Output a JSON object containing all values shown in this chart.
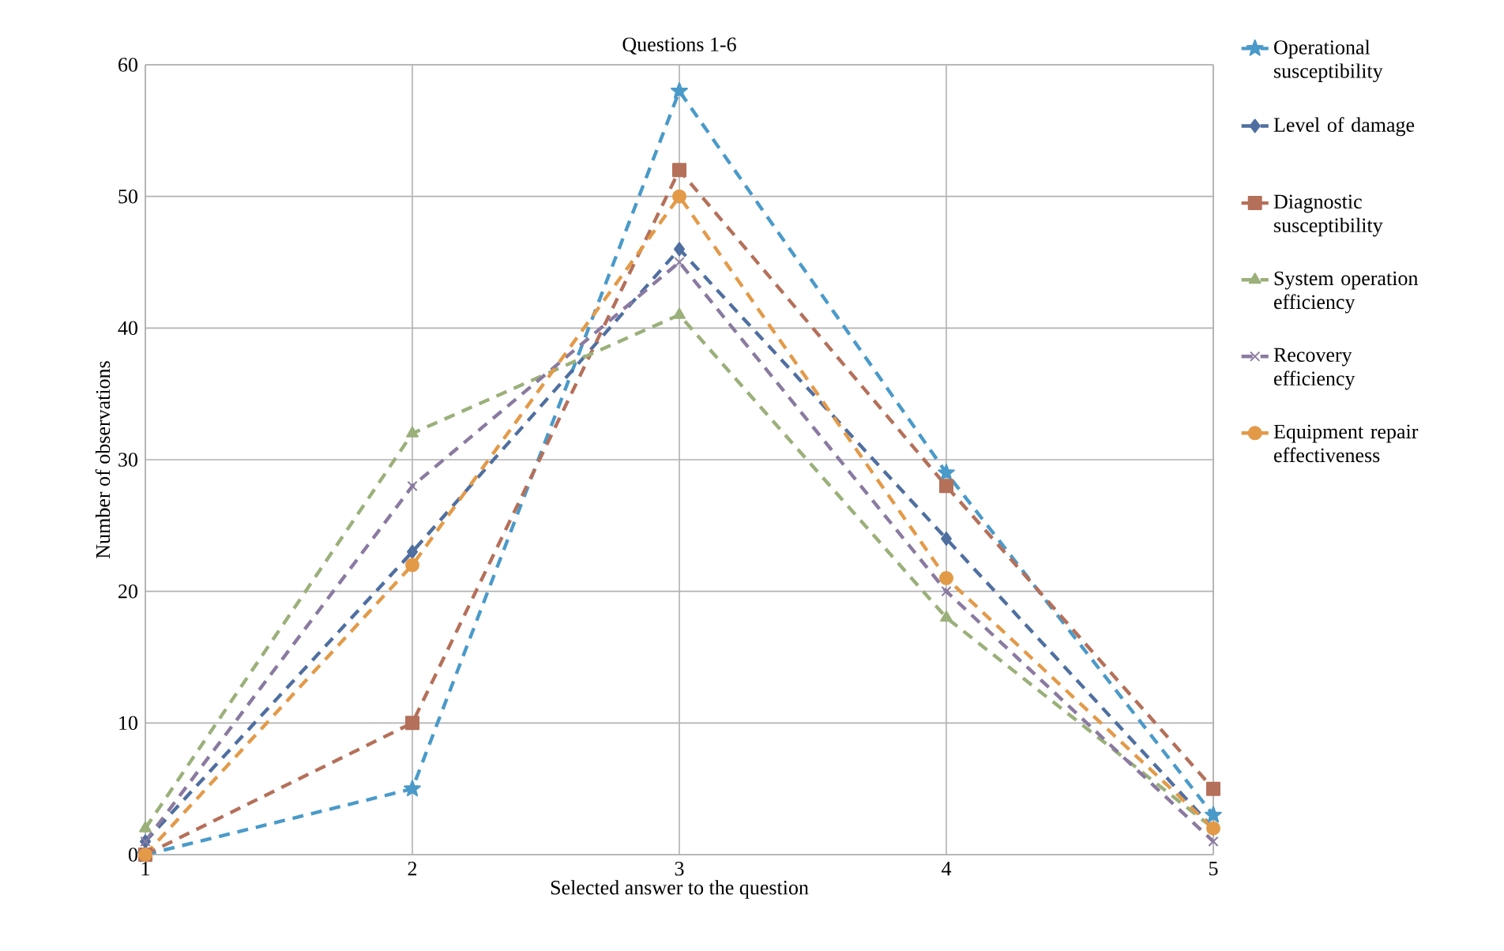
{
  "chart_data": {
    "type": "line",
    "title": "Questions 1-6",
    "xlabel": "Selected answer to the question",
    "ylabel": "Number of observations",
    "x": [
      1,
      2,
      3,
      4,
      5
    ],
    "xlim": [
      1,
      5
    ],
    "xticks": [
      1,
      2,
      3,
      4,
      5
    ],
    "ylim": [
      0,
      60
    ],
    "yticks": [
      0,
      10,
      20,
      30,
      40,
      50,
      60
    ],
    "grid": true,
    "legend": "right",
    "line_style": "dashed",
    "series": [
      {
        "name": "Operational susceptibility",
        "color": "#4a9ac9",
        "marker": "star",
        "values": [
          0,
          5,
          58,
          29,
          3
        ]
      },
      {
        "name": "Level of damage",
        "color": "#4f6fa0",
        "marker": "diamond",
        "values": [
          1,
          23,
          46,
          24,
          2
        ]
      },
      {
        "name": "Diagnostic susceptibility",
        "color": "#b5705a",
        "marker": "square",
        "values": [
          0,
          10,
          52,
          28,
          5
        ]
      },
      {
        "name": "System operation efficiency",
        "color": "#9bb07a",
        "marker": "triangle",
        "values": [
          2,
          32,
          41,
          18,
          2
        ]
      },
      {
        "name": "Recovery efficiency",
        "color": "#8a7aa0",
        "marker": "cross",
        "values": [
          1,
          28,
          45,
          20,
          1
        ]
      },
      {
        "name": "Equipment repair effectiveness",
        "color": "#e39a48",
        "marker": "circle",
        "values": [
          0,
          22,
          50,
          21,
          2
        ]
      }
    ]
  }
}
